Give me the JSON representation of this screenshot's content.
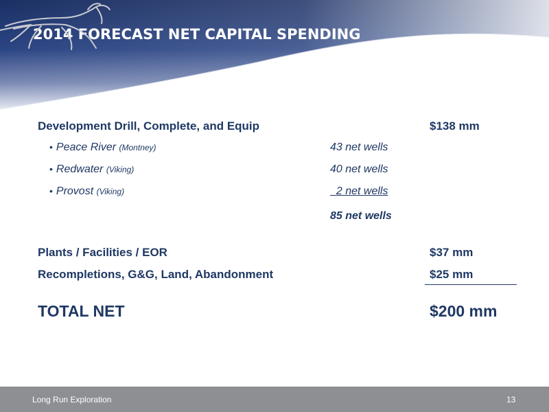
{
  "slide": {
    "title": "2014 FORECAST NET CAPITAL SPENDING",
    "logo_icon": "running-horse-logo"
  },
  "colors": {
    "title_band": "#1f3864",
    "text": "#1f3864",
    "footer": "#8e8f93"
  },
  "spending": {
    "development": {
      "label": "Development Drill, Complete, and Equip",
      "amount": "$138 mm",
      "areas": [
        {
          "bullet": "•",
          "name": "Peace River",
          "formation": "(Montney)",
          "wells": "43 net wells"
        },
        {
          "bullet": "•",
          "name": "Redwater",
          "formation": "(Viking)",
          "wells": "40 net wells"
        },
        {
          "bullet": "•",
          "name": "Provost",
          "formation": "(Viking)",
          "wells": "  2 net wells"
        }
      ],
      "total_wells": "85 net wells"
    },
    "plants": {
      "label": "Plants / Facilities / EOR",
      "amount": "$37 mm"
    },
    "recompletions": {
      "label": "Recompletions, G&G, Land, Abandonment",
      "amount": "$25 mm"
    },
    "total": {
      "label": "TOTAL NET",
      "amount": "$200 mm"
    }
  },
  "footer": {
    "company": "Long Run Exploration",
    "page_number": "13"
  }
}
